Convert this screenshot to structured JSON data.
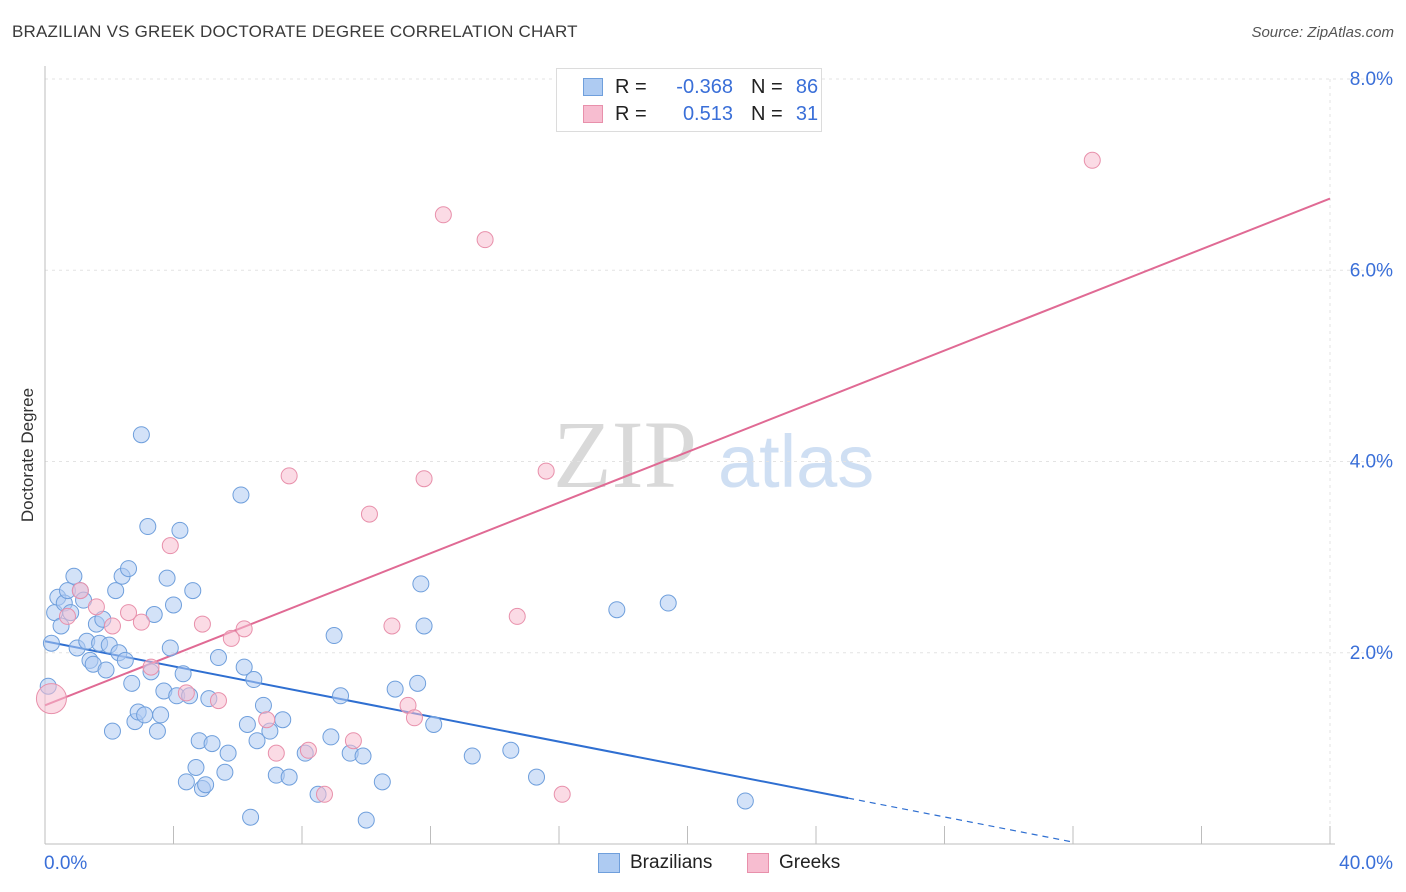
{
  "title": "BRAZILIAN VS GREEK DOCTORATE DEGREE CORRELATION CHART",
  "source": "Source: ZipAtlas.com",
  "watermark": {
    "zip": "ZIP",
    "atlas": "atlas"
  },
  "colors": {
    "blue_fill": "#aecbf2",
    "blue_stroke": "#6f9fdc",
    "blue_line": "#2f6fd1",
    "pink_fill": "#f7bdd0",
    "pink_stroke": "#e890ab",
    "pink_line": "#e06a94",
    "tick_text": "#3a6fd8",
    "grid": "#e3e3e3"
  },
  "legend": {
    "rows": [
      {
        "series": "Brazilians",
        "r_label": "R =",
        "r_value": "-0.368",
        "n_label": "N =",
        "n_value": "86"
      },
      {
        "series": "Greeks",
        "r_label": "R =",
        "r_value": "0.513",
        "n_label": "N =",
        "n_value": "31"
      }
    ]
  },
  "chart_data": {
    "type": "scatter",
    "title": "BRAZILIAN VS GREEK DOCTORATE DEGREE CORRELATION CHART",
    "xlabel": "",
    "ylabel": "Doctorate Degree",
    "xlim": [
      0,
      40
    ],
    "ylim": [
      0,
      8.0
    ],
    "x_tick_labels": [
      "0.0%",
      "40.0%"
    ],
    "y_ticks": [
      2.0,
      4.0,
      6.0,
      8.0
    ],
    "y_tick_labels": [
      "2.0%",
      "4.0%",
      "6.0%",
      "8.0%"
    ],
    "grid": true,
    "legend_position": "top-center",
    "series": [
      {
        "name": "Brazilians",
        "r": -0.368,
        "n": 86,
        "trend": {
          "x": [
            0,
            25
          ],
          "y": [
            2.12,
            0.48
          ],
          "dashed_extension_to": [
            32,
            0.02
          ]
        },
        "points": [
          [
            0.1,
            1.65
          ],
          [
            0.2,
            2.1
          ],
          [
            0.3,
            2.42
          ],
          [
            0.4,
            2.58
          ],
          [
            0.5,
            2.28
          ],
          [
            0.6,
            2.52
          ],
          [
            0.7,
            2.65
          ],
          [
            0.8,
            2.42
          ],
          [
            0.9,
            2.8
          ],
          [
            1.0,
            2.05
          ],
          [
            1.1,
            2.65
          ],
          [
            1.2,
            2.55
          ],
          [
            1.3,
            2.12
          ],
          [
            1.4,
            1.92
          ],
          [
            1.5,
            1.88
          ],
          [
            1.6,
            2.3
          ],
          [
            1.7,
            2.1
          ],
          [
            1.8,
            2.35
          ],
          [
            1.9,
            1.82
          ],
          [
            2.0,
            2.08
          ],
          [
            2.1,
            1.18
          ],
          [
            2.2,
            2.65
          ],
          [
            2.3,
            2.0
          ],
          [
            2.4,
            2.8
          ],
          [
            2.5,
            1.92
          ],
          [
            2.6,
            2.88
          ],
          [
            2.7,
            1.68
          ],
          [
            2.8,
            1.28
          ],
          [
            2.9,
            1.38
          ],
          [
            3.0,
            4.28
          ],
          [
            3.1,
            1.35
          ],
          [
            3.2,
            3.32
          ],
          [
            3.3,
            1.8
          ],
          [
            3.4,
            2.4
          ],
          [
            3.5,
            1.18
          ],
          [
            3.6,
            1.35
          ],
          [
            3.7,
            1.6
          ],
          [
            3.8,
            2.78
          ],
          [
            3.9,
            2.05
          ],
          [
            4.0,
            2.5
          ],
          [
            4.1,
            1.55
          ],
          [
            4.2,
            3.28
          ],
          [
            4.3,
            1.78
          ],
          [
            4.4,
            0.65
          ],
          [
            4.5,
            1.55
          ],
          [
            4.6,
            2.65
          ],
          [
            4.7,
            0.8
          ],
          [
            4.8,
            1.08
          ],
          [
            4.9,
            0.58
          ],
          [
            5.0,
            0.62
          ],
          [
            5.1,
            1.52
          ],
          [
            5.2,
            1.05
          ],
          [
            5.4,
            1.95
          ],
          [
            5.6,
            0.75
          ],
          [
            5.7,
            0.95
          ],
          [
            6.1,
            3.65
          ],
          [
            6.2,
            1.85
          ],
          [
            6.3,
            1.25
          ],
          [
            6.4,
            0.28
          ],
          [
            6.5,
            1.72
          ],
          [
            6.6,
            1.08
          ],
          [
            6.8,
            1.45
          ],
          [
            7.0,
            1.18
          ],
          [
            7.2,
            0.72
          ],
          [
            7.4,
            1.3
          ],
          [
            7.6,
            0.7
          ],
          [
            8.1,
            0.95
          ],
          [
            8.5,
            0.52
          ],
          [
            8.9,
            1.12
          ],
          [
            9.0,
            2.18
          ],
          [
            9.2,
            1.55
          ],
          [
            9.5,
            0.95
          ],
          [
            9.9,
            0.92
          ],
          [
            10.0,
            0.25
          ],
          [
            10.5,
            0.65
          ],
          [
            10.9,
            1.62
          ],
          [
            11.6,
            1.68
          ],
          [
            11.7,
            2.72
          ],
          [
            11.8,
            2.28
          ],
          [
            12.1,
            1.25
          ],
          [
            13.3,
            0.92
          ],
          [
            14.5,
            0.98
          ],
          [
            15.3,
            0.7
          ],
          [
            17.8,
            2.45
          ],
          [
            19.4,
            2.52
          ],
          [
            21.8,
            0.45
          ]
        ]
      },
      {
        "name": "Greeks",
        "r": 0.513,
        "n": 31,
        "trend": {
          "x": [
            0,
            40
          ],
          "y": [
            1.45,
            6.75
          ]
        },
        "points": [
          [
            0.2,
            1.52
          ],
          [
            0.7,
            2.38
          ],
          [
            1.1,
            2.65
          ],
          [
            1.6,
            2.48
          ],
          [
            2.1,
            2.28
          ],
          [
            2.6,
            2.42
          ],
          [
            3.0,
            2.32
          ],
          [
            3.3,
            1.85
          ],
          [
            3.9,
            3.12
          ],
          [
            4.4,
            1.58
          ],
          [
            4.9,
            2.3
          ],
          [
            5.4,
            1.5
          ],
          [
            5.8,
            2.15
          ],
          [
            6.2,
            2.25
          ],
          [
            6.9,
            1.3
          ],
          [
            7.2,
            0.95
          ],
          [
            7.6,
            3.85
          ],
          [
            8.2,
            0.98
          ],
          [
            8.7,
            0.52
          ],
          [
            9.6,
            1.08
          ],
          [
            10.1,
            3.45
          ],
          [
            10.8,
            2.28
          ],
          [
            11.3,
            1.45
          ],
          [
            11.5,
            1.32
          ],
          [
            11.8,
            3.82
          ],
          [
            12.4,
            6.58
          ],
          [
            13.7,
            6.32
          ],
          [
            14.7,
            2.38
          ],
          [
            15.6,
            3.9
          ],
          [
            16.1,
            0.52
          ],
          [
            32.6,
            7.15
          ]
        ]
      }
    ]
  }
}
